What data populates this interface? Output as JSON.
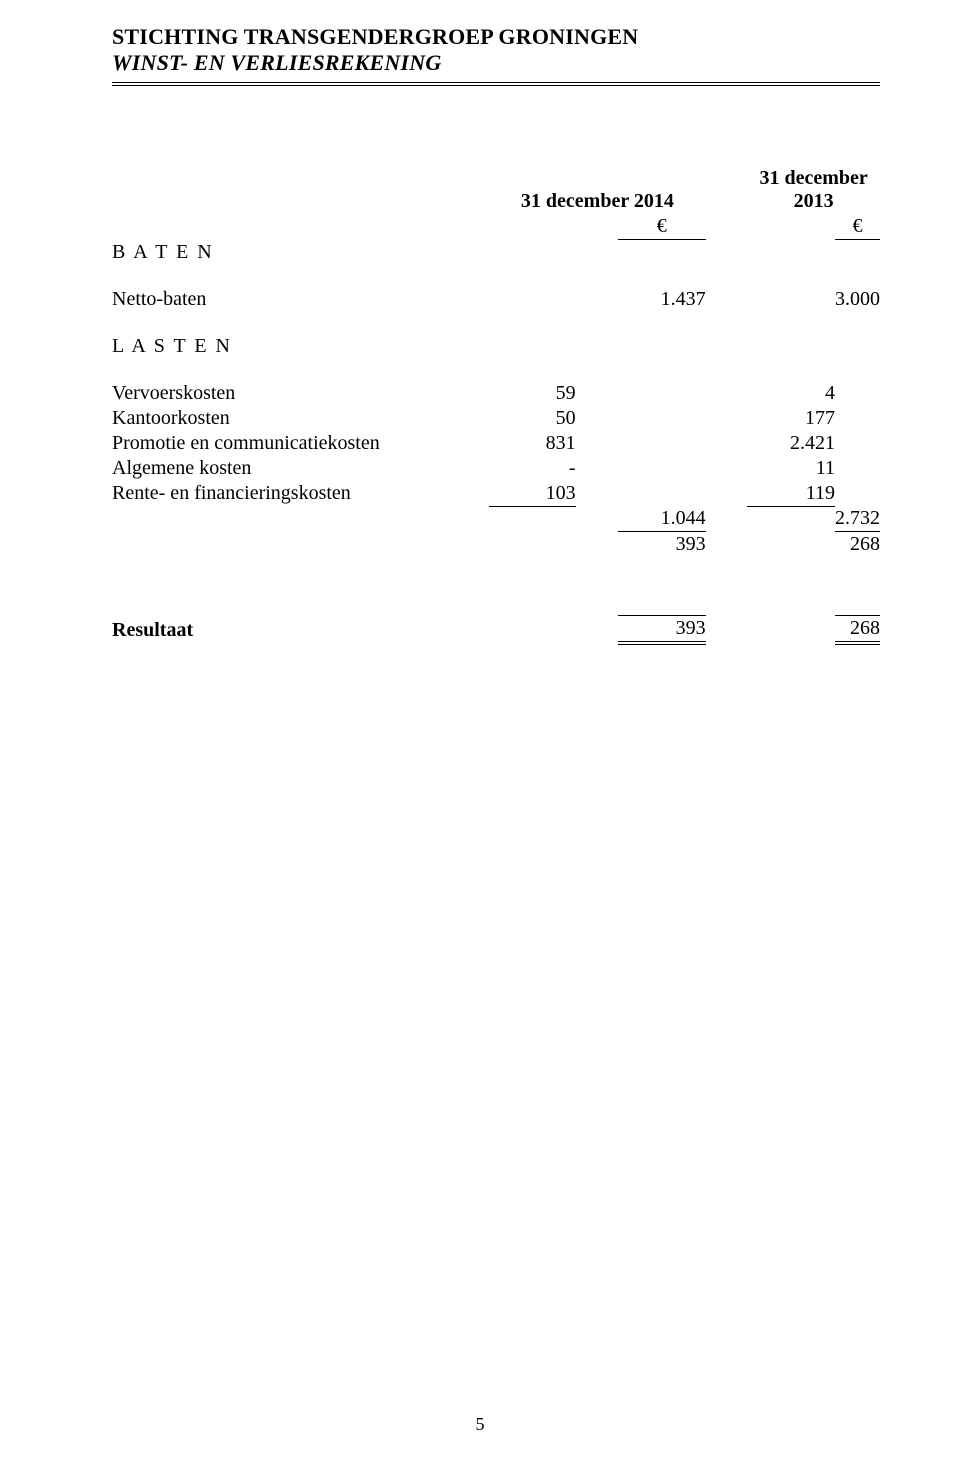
{
  "header": {
    "org": "STICHTING TRANSGENDERGROEP GRONINGEN",
    "subtitle": "WINST- EN VERLIESREKENING"
  },
  "columns": {
    "col1": "31 december 2014",
    "col2": "31 december 2013",
    "currency": "€"
  },
  "sections": {
    "baten": "B A T E N",
    "lasten": "L A S T E N"
  },
  "rows": {
    "netto_baten": {
      "label": "Netto-baten",
      "v1": "1.437",
      "v2": "3.000"
    },
    "vervoers": {
      "label": "Vervoerskosten",
      "v1": "59",
      "v2": "4"
    },
    "kantoor": {
      "label": "Kantoorkosten",
      "v1": "50",
      "v2": "177"
    },
    "promotie": {
      "label": "Promotie en communicatiekosten",
      "v1": "831",
      "v2": "2.421"
    },
    "algemene": {
      "label": "Algemene kosten",
      "v1": "-",
      "v2": "11"
    },
    "rente": {
      "label": "Rente- en financieringskosten",
      "v1": "103",
      "v2": "119"
    },
    "subtotal": {
      "v1": "1.044",
      "v2": "2.732"
    },
    "diff": {
      "v1": "393",
      "v2": "268"
    },
    "resultaat": {
      "label": "Resultaat",
      "v1": "393",
      "v2": "268"
    }
  },
  "page_number": "5"
}
